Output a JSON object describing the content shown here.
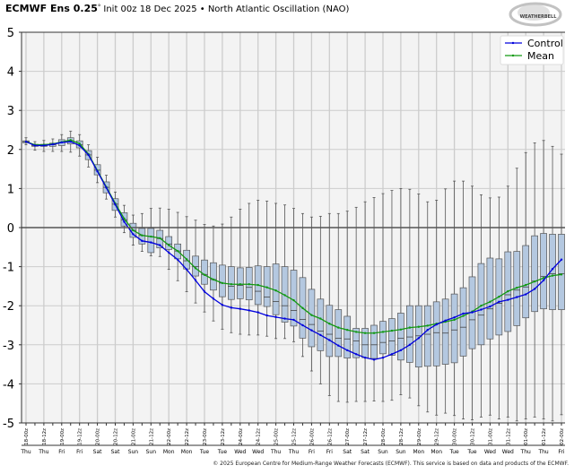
{
  "header": {
    "model": "ECMWF Ens 0.25",
    "degree": "°",
    "subtitle": "Init 00z 18 Dec 2025 • North Atlantic Oscillation (NAO)"
  },
  "logo_text": "WEATHERBELL",
  "footer": "© 2025 European Centre for Medium-Range Weather Forecasts (ECMWF). This service is based on data and products of the ECMWF.",
  "colors": {
    "control": "#0000dd",
    "mean": "#119911",
    "box_fill": "#b4c8e0",
    "box_stroke": "#555555",
    "plot_bg": "#f3f3f3",
    "grid": "#cccccc"
  },
  "chart_data": {
    "type": "box+line",
    "ylim": [
      -5,
      5
    ],
    "yticks": [
      "5",
      "4",
      "3",
      "2",
      "1",
      "0",
      "-1",
      "-2",
      "-3",
      "-4",
      "-5"
    ],
    "grid": true,
    "legend_position": "top-right",
    "x_interval_hours": 6,
    "xtick_labels": [
      "18-00z",
      "18-12z",
      "19-00z",
      "19-12z",
      "20-00z",
      "20-12z",
      "21-00z",
      "21-12z",
      "22-00z",
      "22-12z",
      "23-00z",
      "23-12z",
      "24-00z",
      "24-12z",
      "25-00z",
      "25-12z",
      "26-00z",
      "26-12z",
      "27-00z",
      "27-12z",
      "28-00z",
      "28-12z",
      "29-00z",
      "29-12z",
      "30-00z",
      "30-12z",
      "31-00z",
      "31-12z",
      "01-00z",
      "01-12z",
      "02-00z"
    ],
    "day_labels": [
      "Thu",
      "Thu",
      "Fri",
      "Fri",
      "Sat",
      "Sat",
      "Sun",
      "Sun",
      "Mon",
      "Mon",
      "Tue",
      "Tue",
      "Wed",
      "Wed",
      "Thu",
      "Thu",
      "Fri",
      "Fri",
      "Sat",
      "Sat",
      "Sun",
      "Sun",
      "Mon",
      "Mon",
      "Tue",
      "Tue",
      "Wed",
      "Wed",
      "Thu",
      "Thu",
      "Fri"
    ],
    "series": [
      {
        "name": "Control",
        "values": [
          2.2,
          2.1,
          2.1,
          2.13,
          2.18,
          2.2,
          2.1,
          1.86,
          1.44,
          1.02,
          0.59,
          0.15,
          -0.17,
          -0.34,
          -0.38,
          -0.45,
          -0.64,
          -0.82,
          -1.07,
          -1.35,
          -1.64,
          -1.82,
          -1.98,
          -2.05,
          -2.08,
          -2.12,
          -2.17,
          -2.25,
          -2.29,
          -2.33,
          -2.36,
          -2.5,
          -2.63,
          -2.75,
          -2.88,
          -3.02,
          -3.14,
          -3.24,
          -3.33,
          -3.38,
          -3.33,
          -3.24,
          -3.14,
          -3.0,
          -2.83,
          -2.62,
          -2.48,
          -2.38,
          -2.3,
          -2.2,
          -2.17,
          -2.1,
          -2.02,
          -1.9,
          -1.85,
          -1.78,
          -1.71,
          -1.57,
          -1.35,
          -1.06,
          -0.82
        ]
      },
      {
        "name": "Mean",
        "values": [
          2.2,
          2.12,
          2.12,
          2.14,
          2.19,
          2.24,
          2.15,
          1.88,
          1.46,
          1.04,
          0.62,
          0.23,
          -0.07,
          -0.2,
          -0.23,
          -0.27,
          -0.45,
          -0.6,
          -0.81,
          -1.04,
          -1.21,
          -1.33,
          -1.42,
          -1.45,
          -1.45,
          -1.45,
          -1.47,
          -1.53,
          -1.61,
          -1.73,
          -1.86,
          -2.06,
          -2.24,
          -2.33,
          -2.46,
          -2.56,
          -2.62,
          -2.67,
          -2.7,
          -2.7,
          -2.67,
          -2.64,
          -2.61,
          -2.56,
          -2.54,
          -2.51,
          -2.46,
          -2.41,
          -2.36,
          -2.26,
          -2.15,
          -2.0,
          -1.9,
          -1.77,
          -1.63,
          -1.54,
          -1.47,
          -1.38,
          -1.29,
          -1.23,
          -1.2
        ]
      }
    ],
    "boxes": {
      "max": [
        2.3,
        2.2,
        2.23,
        2.27,
        2.38,
        2.47,
        2.38,
        2.12,
        1.8,
        1.34,
        0.91,
        0.57,
        0.32,
        0.36,
        0.49,
        0.5,
        0.47,
        0.39,
        0.28,
        0.19,
        0.08,
        0.04,
        0.09,
        0.27,
        0.47,
        0.62,
        0.7,
        0.68,
        0.62,
        0.58,
        0.49,
        0.36,
        0.27,
        0.29,
        0.36,
        0.36,
        0.42,
        0.52,
        0.66,
        0.77,
        0.87,
        0.95,
        1.0,
        0.98,
        0.86,
        0.66,
        0.7,
        0.99,
        1.19,
        1.19,
        1.06,
        0.84,
        0.76,
        0.78,
        1.06,
        1.52,
        1.92,
        2.17,
        2.23,
        2.08,
        1.88
      ],
      "q3": [
        2.22,
        2.13,
        2.13,
        2.16,
        2.25,
        2.3,
        2.22,
        1.97,
        1.61,
        1.17,
        0.74,
        0.38,
        0.11,
        -0.02,
        -0.02,
        -0.07,
        -0.23,
        -0.42,
        -0.58,
        -0.73,
        -0.83,
        -0.9,
        -0.96,
        -1.0,
        -1.03,
        -1.02,
        -0.98,
        -1.0,
        -0.93,
        -1.0,
        -1.09,
        -1.28,
        -1.58,
        -1.83,
        -1.99,
        -2.1,
        -2.27,
        -2.58,
        -2.58,
        -2.5,
        -2.4,
        -2.33,
        -2.19,
        -2.0,
        -2.0,
        -2.0,
        -1.9,
        -1.83,
        -1.7,
        -1.54,
        -1.26,
        -0.92,
        -0.78,
        -0.8,
        -0.62,
        -0.61,
        -0.46,
        -0.21,
        -0.15,
        -0.17,
        -0.17
      ],
      "median": [
        2.2,
        2.1,
        2.1,
        2.12,
        2.18,
        2.22,
        2.12,
        1.86,
        1.47,
        1.03,
        0.6,
        0.2,
        -0.07,
        -0.2,
        -0.23,
        -0.28,
        -0.42,
        -0.6,
        -0.85,
        -1.0,
        -1.2,
        -1.33,
        -1.42,
        -1.5,
        -1.48,
        -1.53,
        -1.63,
        -1.78,
        -1.89,
        -2.0,
        -2.12,
        -2.35,
        -2.48,
        -2.65,
        -2.73,
        -2.83,
        -2.85,
        -2.9,
        -3.0,
        -3.0,
        -2.94,
        -2.9,
        -2.83,
        -2.8,
        -2.77,
        -2.73,
        -2.69,
        -2.7,
        -2.62,
        -2.55,
        -2.36,
        -2.24,
        -2.08,
        -1.94,
        -1.72,
        -1.6,
        -1.52,
        -1.37,
        -1.25,
        -1.18,
        -1.18
      ],
      "q1": [
        2.17,
        2.08,
        2.08,
        2.08,
        2.1,
        2.14,
        2.04,
        1.74,
        1.35,
        0.89,
        0.44,
        0.04,
        -0.25,
        -0.42,
        -0.64,
        -0.52,
        -0.56,
        -0.8,
        -1.06,
        -1.24,
        -1.45,
        -1.6,
        -1.77,
        -1.84,
        -1.82,
        -1.85,
        -1.97,
        -2.02,
        -2.23,
        -2.42,
        -2.52,
        -2.83,
        -3.05,
        -3.15,
        -3.3,
        -3.3,
        -3.34,
        -3.33,
        -3.33,
        -3.35,
        -3.23,
        -3.27,
        -3.39,
        -3.45,
        -3.57,
        -3.55,
        -3.54,
        -3.5,
        -3.46,
        -3.29,
        -3.1,
        -3.0,
        -2.85,
        -2.75,
        -2.66,
        -2.51,
        -2.31,
        -2.15,
        -2.08,
        -2.1,
        -2.1
      ],
      "min": [
        2.12,
        1.98,
        1.95,
        1.95,
        1.95,
        1.93,
        1.83,
        1.55,
        1.15,
        0.73,
        0.27,
        -0.13,
        -0.45,
        -0.61,
        -0.72,
        -0.74,
        -1.07,
        -1.36,
        -1.64,
        -1.93,
        -2.16,
        -2.39,
        -2.6,
        -2.69,
        -2.73,
        -2.75,
        -2.75,
        -2.78,
        -2.84,
        -2.84,
        -2.92,
        -3.3,
        -3.67,
        -4.0,
        -4.3,
        -4.45,
        -4.47,
        -4.45,
        -4.45,
        -4.44,
        -4.45,
        -4.42,
        -4.28,
        -4.36,
        -4.56,
        -4.72,
        -4.8,
        -4.75,
        -4.81,
        -4.9,
        -4.92,
        -4.85,
        -4.8,
        -4.9,
        -4.85,
        -4.95,
        -4.9,
        -4.85,
        -4.9,
        -4.95,
        -4.79
      ]
    }
  }
}
